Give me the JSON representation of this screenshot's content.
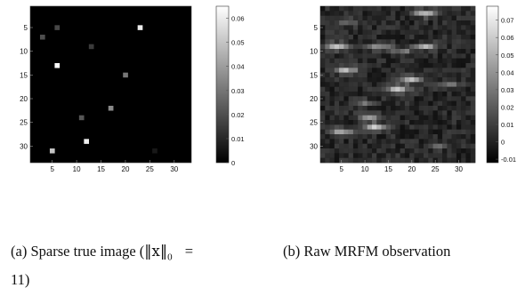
{
  "panels": [
    {
      "id": "a",
      "caption_label": "(a)",
      "caption_text": "Sparse true image (",
      "caption_norm": "‖x‖",
      "caption_sub": "0",
      "caption_eq": " = ",
      "caption_tail_line1": "",
      "caption_tail_line2": "11)",
      "image_size": 33,
      "x_ticks": [
        5,
        10,
        15,
        20,
        25,
        30
      ],
      "y_ticks": [
        5,
        10,
        15,
        20,
        25,
        30
      ],
      "colorbar_ticks": [
        "0",
        "0.01",
        "0.02",
        "0.03",
        "0.04",
        "0.05",
        "0.06"
      ],
      "colorbar_range": [
        0,
        0.065
      ],
      "pixels": [
        {
          "x": 23,
          "y": 5,
          "v": 0.06
        },
        {
          "x": 6,
          "y": 5,
          "v": 0.018
        },
        {
          "x": 3,
          "y": 7,
          "v": 0.02
        },
        {
          "x": 13,
          "y": 9,
          "v": 0.015
        },
        {
          "x": 6,
          "y": 13,
          "v": 0.064
        },
        {
          "x": 20,
          "y": 15,
          "v": 0.03
        },
        {
          "x": 17,
          "y": 22,
          "v": 0.035
        },
        {
          "x": 11,
          "y": 24,
          "v": 0.022
        },
        {
          "x": 12,
          "y": 29,
          "v": 0.061
        },
        {
          "x": 5,
          "y": 31,
          "v": 0.05
        },
        {
          "x": 26,
          "y": 31,
          "v": 0.006
        }
      ]
    },
    {
      "id": "b",
      "caption_label": "(b)",
      "caption_text": "Raw MRFM observation",
      "image_size": 33,
      "x_ticks": [
        5,
        10,
        15,
        20,
        25,
        30
      ],
      "y_ticks": [
        5,
        10,
        15,
        20,
        25,
        30
      ],
      "colorbar_ticks": [
        "-0.01",
        "0",
        "0.01",
        "0.02",
        "0.03",
        "0.04",
        "0.05",
        "0.06",
        "0.07"
      ],
      "colorbar_range": [
        -0.012,
        0.078
      ]
    }
  ]
}
